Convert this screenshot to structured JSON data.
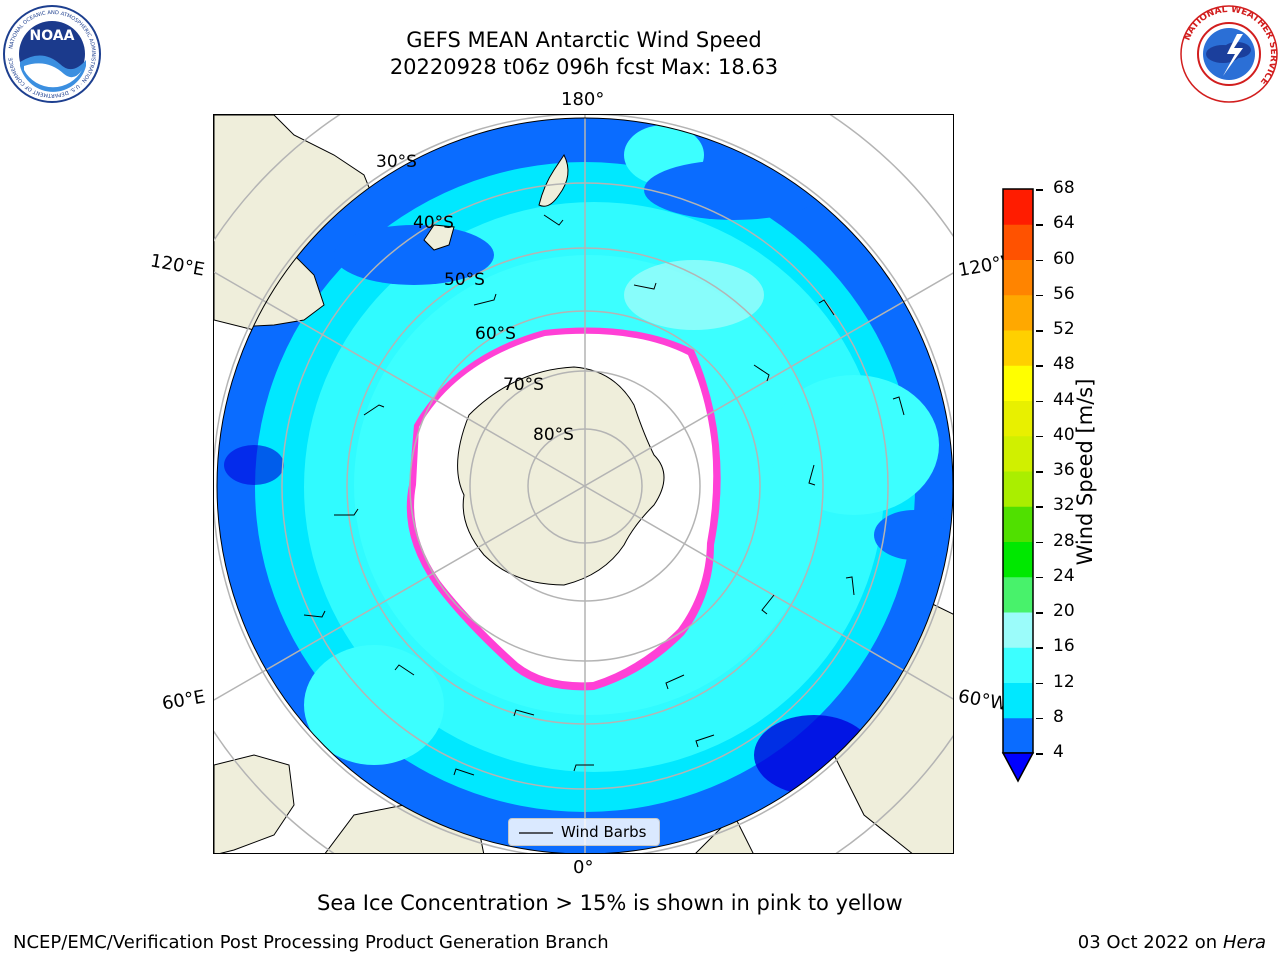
{
  "header": {
    "title_line1": "GEFS MEAN Antarctic Wind Speed",
    "title_line2": "20220928 t06z 096h fcst   Max: 18.63"
  },
  "logos": {
    "noaa": {
      "text": "NOAA",
      "ring_text": "NATIONAL OCEANIC AND ATMOSPHERIC ADMINISTRATION · U.S. DEPARTMENT OF COMMERCE"
    },
    "nws": {
      "ring_text": "NATIONAL WEATHER SERVICE"
    }
  },
  "map": {
    "projection": "South Polar Stereographic",
    "longitude_labels": {
      "top": "180°",
      "bottom": "0°",
      "upper_left": "120°E",
      "upper_right": "120°W",
      "lower_left": "60°E",
      "lower_right": "60°W"
    },
    "latitude_labels": [
      "30°S",
      "40°S",
      "50°S",
      "60°S",
      "70°S",
      "80°S"
    ],
    "legend_label": "Wind Barbs",
    "colors": {
      "land": "#efeedb",
      "grid": "#b4b4b4",
      "wind_4_8": "#0a6cff",
      "wind_8_12": "#00e8ff",
      "wind_12_16": "#3cffff",
      "wind_16_20": "#9bfcfa",
      "ice_pink": "#ff40d6",
      "ice_yellow": "#ffd040"
    }
  },
  "colorbar": {
    "label": "Wind Speed [m/s]",
    "ticks": [
      "4",
      "8",
      "12",
      "16",
      "20",
      "24",
      "28",
      "32",
      "36",
      "40",
      "44",
      "48",
      "52",
      "56",
      "60",
      "64",
      "68"
    ],
    "colors": [
      "#0a6cff",
      "#00e8ff",
      "#3cffff",
      "#9bfcfa",
      "#48f26b",
      "#00e800",
      "#50e000",
      "#aaee00",
      "#d0f000",
      "#e8f000",
      "#ffff00",
      "#ffd000",
      "#ffa800",
      "#ff8400",
      "#ff5200",
      "#ff1c00"
    ],
    "extend_color": "#0000ff"
  },
  "caption": "Sea Ice Concentration > 15% is shown in pink to yellow",
  "footer": {
    "left": "NCEP/EMC/Verification Post Processing Product Generation Branch",
    "right_prefix": "03 Oct 2022 on ",
    "right_host": "Hera"
  }
}
